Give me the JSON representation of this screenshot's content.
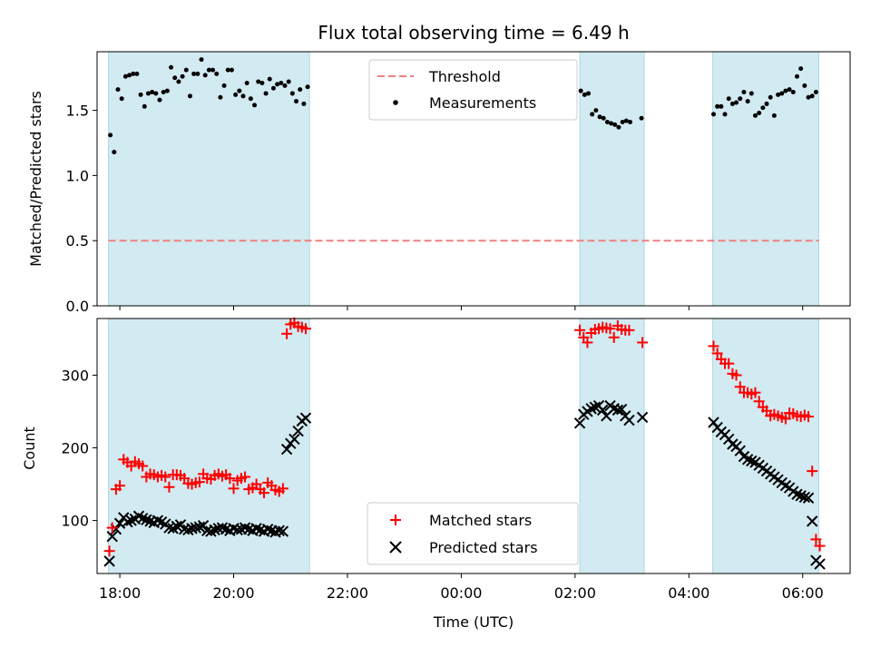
{
  "chart_data": [
    {
      "type": "scatter",
      "title": "Flux total observing time = 6.49 h",
      "ylabel": "Matched/Predicted stars",
      "xlabel": "",
      "ylim": [
        0,
        1.95
      ],
      "xlim": [
        "17:36",
        "06:50"
      ],
      "yticks": [
        0.0,
        0.5,
        1.0,
        1.5
      ],
      "ytick_labels": [
        "0.0",
        "0.5",
        "1.0",
        "1.5"
      ],
      "legend_position": "top-center",
      "colors": {
        "threshold": "#f08080",
        "measurements": "#000000",
        "observing_band": "#add8e6"
      },
      "observing_periods": [
        {
          "start": "17:48",
          "end": "21:20"
        },
        {
          "start": "02:05",
          "end": "03:13"
        },
        {
          "start": "04:25",
          "end": "06:17"
        }
      ],
      "series": [
        {
          "name": "Threshold",
          "style": "dashed-line",
          "color": "#f08080",
          "value": 0.5
        },
        {
          "name": "Measurements",
          "style": "dot",
          "color": "#000000",
          "x": [
            "17:50",
            "17:54",
            "17:58",
            "18:02",
            "18:06",
            "18:10",
            "18:14",
            "18:18",
            "18:22",
            "18:26",
            "18:30",
            "18:34",
            "18:38",
            "18:42",
            "18:46",
            "18:50",
            "18:54",
            "18:58",
            "19:02",
            "19:06",
            "19:10",
            "19:14",
            "19:18",
            "19:22",
            "19:26",
            "19:30",
            "19:34",
            "19:38",
            "19:42",
            "19:46",
            "19:50",
            "19:54",
            "19:58",
            "20:02",
            "20:06",
            "20:10",
            "20:14",
            "20:18",
            "20:22",
            "20:26",
            "20:30",
            "20:34",
            "20:38",
            "20:42",
            "20:46",
            "20:50",
            "20:54",
            "20:58",
            "21:02",
            "21:06",
            "21:10",
            "21:14",
            "21:18",
            "02:06",
            "02:10",
            "02:14",
            "02:18",
            "02:22",
            "02:26",
            "02:30",
            "02:34",
            "02:38",
            "02:42",
            "02:46",
            "02:50",
            "02:54",
            "02:58",
            "03:10",
            "04:26",
            "04:30",
            "04:34",
            "04:38",
            "04:42",
            "04:46",
            "04:50",
            "04:54",
            "04:58",
            "05:02",
            "05:06",
            "05:10",
            "05:14",
            "05:18",
            "05:22",
            "05:26",
            "05:30",
            "05:34",
            "05:38",
            "05:42",
            "05:46",
            "05:50",
            "05:54",
            "05:58",
            "06:02",
            "06:06",
            "06:10",
            "06:14"
          ],
          "y": [
            1.31,
            1.18,
            1.66,
            1.59,
            1.76,
            1.77,
            1.78,
            1.78,
            1.62,
            1.53,
            1.63,
            1.64,
            1.63,
            1.58,
            1.64,
            1.65,
            1.83,
            1.75,
            1.72,
            1.76,
            1.81,
            1.61,
            1.78,
            1.78,
            1.89,
            1.77,
            1.81,
            1.81,
            1.78,
            1.6,
            1.69,
            1.81,
            1.81,
            1.62,
            1.65,
            1.61,
            1.71,
            1.59,
            1.54,
            1.72,
            1.71,
            1.63,
            1.74,
            1.67,
            1.7,
            1.71,
            1.69,
            1.72,
            1.63,
            1.57,
            1.66,
            1.55,
            1.68,
            1.65,
            1.62,
            1.63,
            1.47,
            1.5,
            1.45,
            1.44,
            1.41,
            1.4,
            1.39,
            1.37,
            1.41,
            1.42,
            1.41,
            1.44,
            1.47,
            1.53,
            1.53,
            1.47,
            1.59,
            1.55,
            1.56,
            1.59,
            1.64,
            1.57,
            1.63,
            1.46,
            1.48,
            1.52,
            1.55,
            1.6,
            1.46,
            1.62,
            1.63,
            1.65,
            1.66,
            1.64,
            1.76,
            1.82,
            1.69,
            1.6,
            1.61,
            1.64
          ]
        }
      ]
    },
    {
      "type": "scatter",
      "title": "",
      "xlabel": "Time (UTC)",
      "ylabel": "Count",
      "ylim": [
        27,
        378
      ],
      "xlim": [
        "17:36",
        "06:50"
      ],
      "yticks": [
        100,
        200,
        300
      ],
      "ytick_labels": [
        "100",
        "200",
        "300"
      ],
      "xtick_labels": [
        "18:00",
        "20:00",
        "22:00",
        "00:00",
        "02:00",
        "04:00",
        "06:00"
      ],
      "legend_position": "bottom-center",
      "colors": {
        "matched": "#ff0000",
        "predicted": "#000000",
        "observing_band": "#add8e6"
      },
      "observing_periods": [
        {
          "start": "17:48",
          "end": "21:20"
        },
        {
          "start": "02:05",
          "end": "03:13"
        },
        {
          "start": "04:25",
          "end": "06:17"
        }
      ],
      "series": [
        {
          "name": "Matched stars",
          "marker": "+",
          "color": "#ff0000",
          "x": [
            "17:49",
            "17:52",
            "17:56",
            "18:00",
            "18:04",
            "18:08",
            "18:12",
            "18:16",
            "18:20",
            "18:24",
            "18:28",
            "18:32",
            "18:36",
            "18:40",
            "18:44",
            "18:48",
            "18:52",
            "18:56",
            "19:00",
            "19:04",
            "19:08",
            "19:12",
            "19:16",
            "19:20",
            "19:24",
            "19:28",
            "19:32",
            "19:36",
            "19:40",
            "19:44",
            "19:48",
            "19:52",
            "19:56",
            "20:00",
            "20:04",
            "20:08",
            "20:12",
            "20:16",
            "20:20",
            "20:24",
            "20:28",
            "20:32",
            "20:36",
            "20:40",
            "20:44",
            "20:48",
            "20:52",
            "20:56",
            "21:00",
            "21:04",
            "21:08",
            "21:12",
            "21:16",
            "02:05",
            "02:09",
            "02:13",
            "02:17",
            "02:21",
            "02:25",
            "02:29",
            "02:33",
            "02:37",
            "02:41",
            "02:45",
            "02:49",
            "02:53",
            "02:57",
            "03:11",
            "04:26",
            "04:30",
            "04:34",
            "04:38",
            "04:42",
            "04:46",
            "04:50",
            "04:54",
            "04:58",
            "05:02",
            "05:06",
            "05:10",
            "05:14",
            "05:18",
            "05:22",
            "05:26",
            "05:30",
            "05:34",
            "05:38",
            "05:42",
            "05:46",
            "05:50",
            "05:54",
            "05:58",
            "06:02",
            "06:06",
            "06:10",
            "06:14",
            "06:18"
          ],
          "y": [
            58,
            90,
            143,
            148,
            184,
            180,
            175,
            181,
            178,
            175,
            160,
            164,
            163,
            160,
            162,
            160,
            146,
            163,
            163,
            162,
            158,
            151,
            150,
            152,
            153,
            164,
            158,
            157,
            162,
            164,
            161,
            163,
            158,
            144,
            155,
            158,
            160,
            143,
            145,
            150,
            143,
            138,
            152,
            148,
            142,
            140,
            144,
            357,
            370,
            372,
            367,
            366,
            364,
            362,
            352,
            345,
            358,
            363,
            364,
            366,
            365,
            364,
            352,
            368,
            363,
            362,
            362,
            345,
            340,
            330,
            322,
            316,
            316,
            302,
            300,
            284,
            276,
            276,
            274,
            276,
            264,
            256,
            251,
            244,
            246,
            244,
            242,
            240,
            248,
            247,
            244,
            243,
            245,
            243,
            168,
            74,
            65
          ]
        },
        {
          "name": "Predicted stars",
          "marker": "x",
          "color": "#000000",
          "x": [
            "17:49",
            "17:52",
            "17:56",
            "18:00",
            "18:04",
            "18:08",
            "18:12",
            "18:16",
            "18:20",
            "18:24",
            "18:28",
            "18:32",
            "18:36",
            "18:40",
            "18:44",
            "18:48",
            "18:52",
            "18:56",
            "19:00",
            "19:04",
            "19:08",
            "19:12",
            "19:16",
            "19:20",
            "19:24",
            "19:28",
            "19:32",
            "19:36",
            "19:40",
            "19:44",
            "19:48",
            "19:52",
            "19:56",
            "20:00",
            "20:04",
            "20:08",
            "20:12",
            "20:16",
            "20:20",
            "20:24",
            "20:28",
            "20:32",
            "20:36",
            "20:40",
            "20:44",
            "20:48",
            "20:52",
            "20:56",
            "21:00",
            "21:04",
            "21:08",
            "21:12",
            "21:16",
            "02:05",
            "02:09",
            "02:13",
            "02:17",
            "02:21",
            "02:25",
            "02:29",
            "02:33",
            "02:37",
            "02:41",
            "02:45",
            "02:49",
            "02:53",
            "02:57",
            "03:11",
            "04:26",
            "04:30",
            "04:34",
            "04:38",
            "04:42",
            "04:46",
            "04:50",
            "04:54",
            "04:58",
            "05:02",
            "05:06",
            "05:10",
            "05:14",
            "05:18",
            "05:22",
            "05:26",
            "05:30",
            "05:34",
            "05:38",
            "05:42",
            "05:46",
            "05:50",
            "05:54",
            "05:58",
            "06:02",
            "06:06",
            "06:10",
            "06:14",
            "06:18"
          ],
          "y": [
            44,
            78,
            88,
            96,
            104,
            98,
            100,
            102,
            106,
            103,
            101,
            99,
            97,
            100,
            98,
            95,
            90,
            89,
            92,
            94,
            88,
            87,
            89,
            90,
            91,
            93,
            86,
            85,
            87,
            89,
            90,
            88,
            86,
            89,
            87,
            88,
            90,
            88,
            86,
            89,
            87,
            85,
            88,
            86,
            84,
            86,
            85,
            198,
            206,
            212,
            223,
            237,
            241,
            234,
            246,
            250,
            254,
            256,
            258,
            252,
            244,
            258,
            254,
            252,
            253,
            244,
            238,
            242,
            235,
            228,
            222,
            218,
            212,
            205,
            202,
            196,
            188,
            184,
            182,
            180,
            176,
            172,
            168,
            164,
            160,
            156,
            152,
            148,
            145,
            140,
            136,
            134,
            132,
            131,
            99,
            45,
            40
          ]
        }
      ]
    }
  ]
}
